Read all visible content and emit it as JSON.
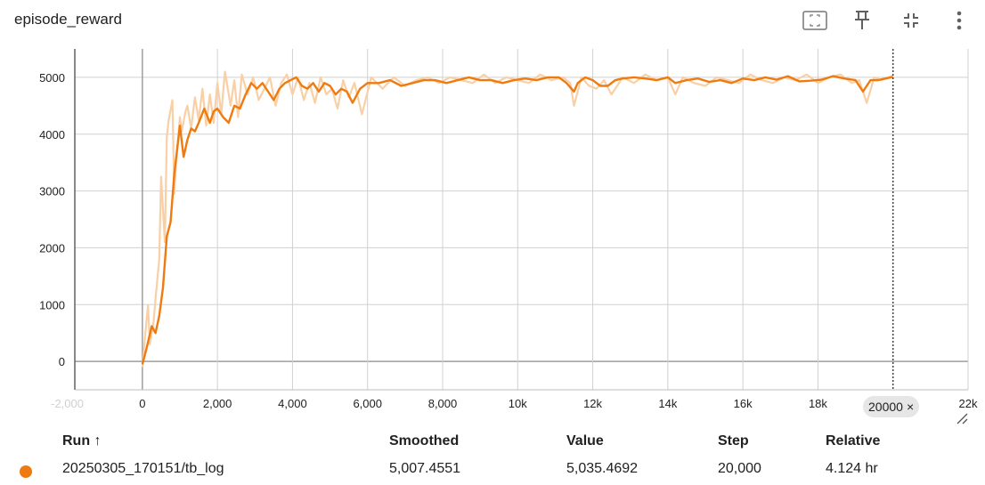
{
  "card": {
    "title": "episode_reward"
  },
  "toolbar": {
    "fullscreen_icon": "fullscreen-icon",
    "pin_icon": "pin-icon",
    "collapse_icon": "collapse-icon",
    "more_icon": "more-vert-icon"
  },
  "colors": {
    "smoothed": "#ef7b10",
    "raw": "#f9cfa6",
    "grid": "#d0d0d0",
    "run": "#ef7b10"
  },
  "chart_data": {
    "type": "line",
    "title": "episode_reward",
    "xlabel": "",
    "ylabel": "",
    "xlim": [
      -1800,
      22000
    ],
    "ylim": [
      -500,
      5500
    ],
    "y_ticks": [
      0,
      1000,
      2000,
      3000,
      4000,
      5000
    ],
    "y_tick_labels": [
      "0",
      "1000",
      "2000",
      "3000",
      "4000",
      "5000"
    ],
    "x_ticks": [
      -2000,
      0,
      2000,
      4000,
      6000,
      8000,
      10000,
      12000,
      14000,
      16000,
      18000,
      22000
    ],
    "x_tick_labels": [
      "-2,000",
      "0",
      "2,000",
      "4,000",
      "6,000",
      "8,000",
      "10k",
      "12k",
      "14k",
      "16k",
      "18k",
      "22k"
    ],
    "hover_step": 20000,
    "grid": true,
    "series": [
      {
        "name": "Smoothed",
        "x": [
          0,
          100,
          250,
          350,
          450,
          550,
          650,
          750,
          850,
          1000,
          1100,
          1200,
          1300,
          1400,
          1500,
          1650,
          1800,
          1900,
          2000,
          2150,
          2300,
          2450,
          2600,
          2750,
          2900,
          3050,
          3200,
          3350,
          3500,
          3650,
          3800,
          3950,
          4100,
          4250,
          4400,
          4550,
          4700,
          4850,
          5000,
          5150,
          5300,
          5450,
          5600,
          5800,
          6000,
          6300,
          6600,
          6900,
          7200,
          7500,
          7800,
          8100,
          8400,
          8700,
          9000,
          9300,
          9600,
          9900,
          10200,
          10500,
          10800,
          11100,
          11300,
          11500,
          11600,
          11800,
          12000,
          12200,
          12400,
          12600,
          12800,
          13100,
          13400,
          13700,
          14000,
          14200,
          14500,
          14800,
          15100,
          15400,
          15700,
          16000,
          16300,
          16600,
          16900,
          17200,
          17500,
          17800,
          18100,
          18400,
          18700,
          19000,
          19200,
          19400,
          19600,
          19800,
          20000
        ],
        "y": [
          -50,
          200,
          620,
          500,
          800,
          1300,
          2200,
          2450,
          3300,
          4150,
          3600,
          3900,
          4100,
          4050,
          4200,
          4450,
          4200,
          4400,
          4450,
          4300,
          4200,
          4500,
          4450,
          4700,
          4900,
          4800,
          4900,
          4750,
          4600,
          4800,
          4900,
          4950,
          5000,
          4850,
          4800,
          4900,
          4750,
          4900,
          4850,
          4700,
          4800,
          4750,
          4550,
          4800,
          4900,
          4900,
          4950,
          4850,
          4900,
          4950,
          4950,
          4900,
          4950,
          5000,
          4950,
          4950,
          4900,
          4950,
          4980,
          4950,
          5000,
          5000,
          4900,
          4750,
          4900,
          5000,
          4950,
          4850,
          4850,
          4950,
          4980,
          5000,
          4980,
          4950,
          5000,
          4900,
          4950,
          4980,
          4920,
          4950,
          4900,
          4980,
          4950,
          5000,
          4960,
          5020,
          4930,
          4940,
          4960,
          5020,
          4980,
          4950,
          4750,
          4950,
          4950,
          4980,
          5007.46
        ]
      },
      {
        "name": "Value",
        "x": [
          0,
          80,
          150,
          200,
          300,
          350,
          450,
          500,
          600,
          650,
          700,
          800,
          850,
          900,
          1000,
          1050,
          1150,
          1200,
          1300,
          1400,
          1500,
          1600,
          1700,
          1800,
          1900,
          2000,
          2100,
          2200,
          2350,
          2450,
          2550,
          2650,
          2800,
          2950,
          3100,
          3250,
          3400,
          3550,
          3700,
          3850,
          4000,
          4150,
          4300,
          4450,
          4600,
          4750,
          4900,
          5050,
          5200,
          5350,
          5500,
          5650,
          5850,
          6100,
          6400,
          6700,
          7000,
          7300,
          7600,
          7900,
          8200,
          8500,
          8800,
          9100,
          9400,
          9700,
          10000,
          10300,
          10600,
          10900,
          11200,
          11400,
          11500,
          11700,
          11900,
          12100,
          12300,
          12500,
          12800,
          13100,
          13400,
          13700,
          14000,
          14200,
          14400,
          14700,
          15000,
          15300,
          15600,
          15900,
          16200,
          16500,
          16800,
          17100,
          17400,
          17700,
          18000,
          18300,
          18600,
          18900,
          19100,
          19300,
          19500,
          19700,
          20000
        ],
        "y": [
          -100,
          500,
          980,
          300,
          700,
          1100,
          1800,
          3250,
          2100,
          3950,
          4250,
          4600,
          2950,
          3500,
          4300,
          4050,
          4400,
          4500,
          4100,
          4650,
          4250,
          4800,
          4150,
          4700,
          4200,
          4900,
          4350,
          5100,
          4500,
          4950,
          4300,
          5050,
          4700,
          5000,
          4600,
          4800,
          5000,
          4500,
          4900,
          5050,
          4700,
          5000,
          4600,
          4900,
          4550,
          5000,
          4700,
          4800,
          4450,
          4950,
          4650,
          4900,
          4350,
          5000,
          4800,
          5000,
          4850,
          4950,
          5000,
          4900,
          5000,
          4950,
          4900,
          5050,
          4900,
          5000,
          4950,
          4900,
          5050,
          4950,
          5000,
          4900,
          4500,
          5000,
          4850,
          4800,
          4950,
          4700,
          5000,
          4900,
          5050,
          4950,
          5000,
          4700,
          5000,
          4900,
          4850,
          5000,
          4950,
          4900,
          5050,
          4950,
          4900,
          5000,
          4950,
          5050,
          4900,
          5000,
          5050,
          4900,
          4950,
          4550,
          5000,
          4950,
          5035.47
        ]
      }
    ]
  },
  "legend": {
    "headers": {
      "run": "Run ↑",
      "smoothed": "Smoothed",
      "value": "Value",
      "step": "Step",
      "relative": "Relative"
    },
    "rows": [
      {
        "run": "20250305_170151/tb_log",
        "smoothed": "5,007.4551",
        "value": "5,035.4692",
        "step": "20,000",
        "relative": "4.124 hr"
      }
    ]
  },
  "hover_tag": {
    "label": "20000",
    "close": "×"
  }
}
